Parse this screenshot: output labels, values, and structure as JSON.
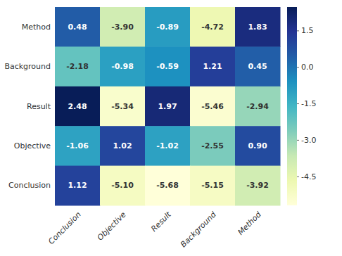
{
  "chart_data": {
    "type": "heatmap",
    "rows": [
      "Method",
      "Background",
      "Result",
      "Objective",
      "Conclusion"
    ],
    "categories": [
      "Conclusion",
      "Objective",
      "Result",
      "Background",
      "Method"
    ],
    "values": [
      [
        0.48,
        -3.9,
        -0.89,
        -4.72,
        1.83
      ],
      [
        -2.18,
        -0.98,
        -0.59,
        1.21,
        0.45
      ],
      [
        2.48,
        -5.34,
        1.97,
        -5.46,
        -2.94
      ],
      [
        -1.06,
        1.02,
        -1.02,
        -2.55,
        0.9
      ],
      [
        1.12,
        -5.1,
        -5.68,
        -5.15,
        -3.92
      ]
    ],
    "value_labels": [
      [
        "0.48",
        "-3.90",
        "-0.89",
        "-4.72",
        "1.83"
      ],
      [
        "-2.18",
        "-0.98",
        "-0.59",
        "1.21",
        "0.45"
      ],
      [
        "2.48",
        "-5.34",
        "1.97",
        "-5.46",
        "-2.94"
      ],
      [
        "-1.06",
        "1.02",
        "-1.02",
        "-2.55",
        "0.90"
      ],
      [
        "1.12",
        "-5.10",
        "-5.68",
        "-5.15",
        "-3.92"
      ]
    ],
    "data_labels": true,
    "color": "YlGnBu",
    "colorbar_range": [
      -5.68,
      2.48
    ],
    "colorbar_ticks": [
      1.5,
      {
        "value": 0,
        "label": "0.0"
      },
      -1.5,
      {
        "value": -3,
        "label": "-3.0"
      },
      -4.5
    ]
  }
}
